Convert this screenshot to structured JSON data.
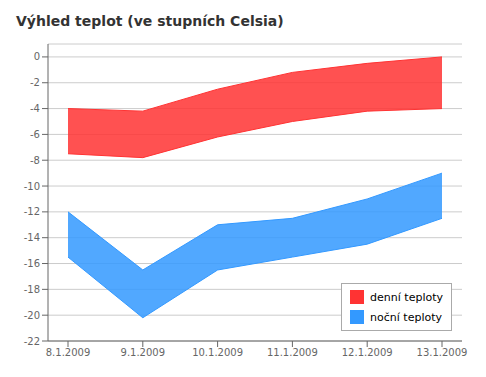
{
  "chart_data": {
    "type": "area",
    "title": "Výhled teplot (ve stupních Celsia)",
    "categories": [
      "8.1.2009",
      "9.1.2009",
      "10.1.2009",
      "11.1.2009",
      "12.1.2009",
      "13.1.2009"
    ],
    "series": [
      {
        "name": "denní teploty",
        "color": "#ff3333",
        "values": [
          [
            -7.5,
            -4.0
          ],
          [
            -7.8,
            -4.2
          ],
          [
            -6.2,
            -2.5
          ],
          [
            -5.0,
            -1.2
          ],
          [
            -4.2,
            -0.5
          ],
          [
            -4.0,
            0.0
          ]
        ]
      },
      {
        "name": "noční teploty",
        "color": "#3399ff",
        "values": [
          [
            -15.5,
            -12.0
          ],
          [
            -20.2,
            -16.5
          ],
          [
            -16.5,
            -13.0
          ],
          [
            -15.5,
            -12.5
          ],
          [
            -14.5,
            -11.0
          ],
          [
            -12.5,
            -9.0
          ]
        ]
      }
    ],
    "ylim": [
      -22,
      1
    ],
    "yticks": [
      0,
      -2,
      -4,
      -6,
      -8,
      -10,
      -12,
      -14,
      -16,
      -18,
      -20,
      -22
    ],
    "grid": true,
    "legend": "lower right"
  }
}
